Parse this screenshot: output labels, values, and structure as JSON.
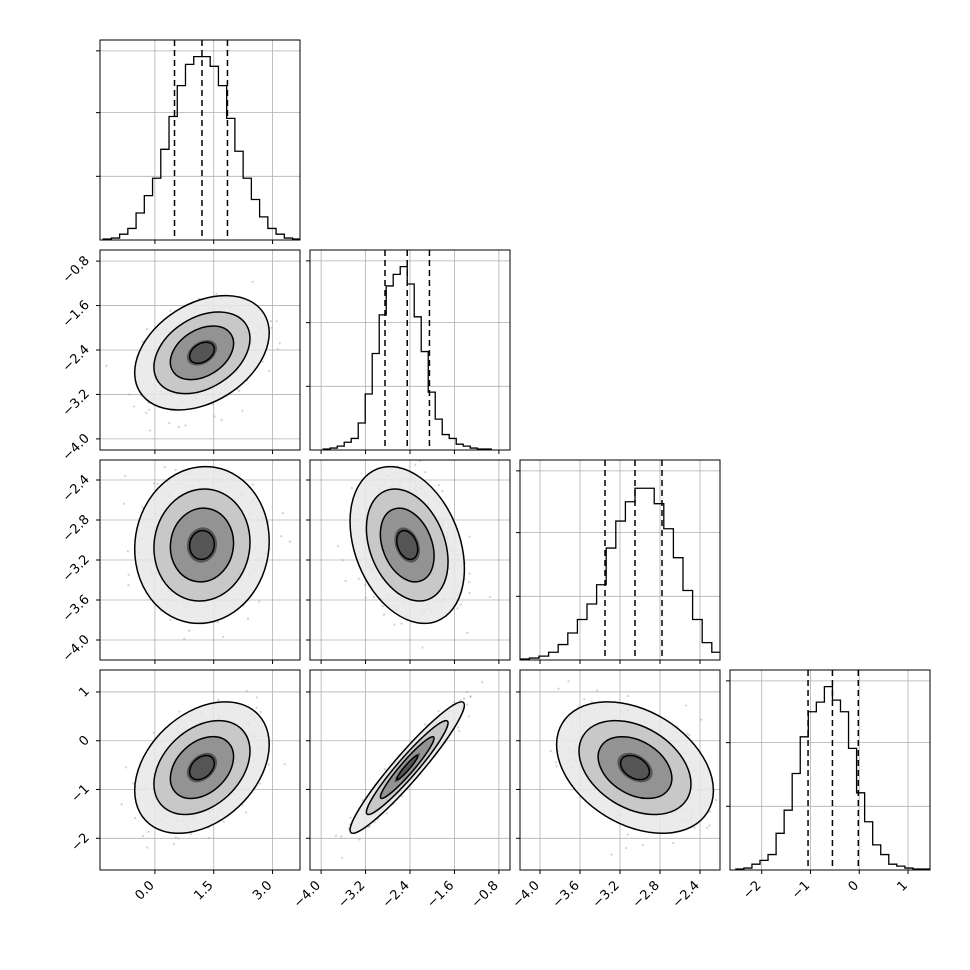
{
  "chart_data": {
    "type": "scatter",
    "subtype": "corner",
    "variables": 4,
    "grid": true,
    "ranges": [
      [
        -1.4,
        3.7
      ],
      [
        -4.2,
        -0.6
      ],
      [
        -4.2,
        -2.2
      ],
      [
        -2.65,
        1.45
      ]
    ],
    "ticks": [
      [
        0.0,
        1.5,
        3.0
      ],
      [
        -4.0,
        -3.2,
        -2.4,
        -1.6,
        -0.8
      ],
      [
        -4.0,
        -3.6,
        -3.2,
        -2.8,
        -2.4
      ],
      [
        -2,
        -1,
        0,
        1
      ]
    ],
    "tick_labels": [
      [
        "0.0",
        "1.5",
        "3.0"
      ],
      [
        "−4.0",
        "−3.2",
        "−2.4",
        "−1.6",
        "−0.8"
      ],
      [
        "−4.0",
        "−3.6",
        "−3.2",
        "−2.8",
        "−2.4"
      ],
      [
        "−2",
        "−1",
        "0",
        "1"
      ]
    ],
    "quantiles": [
      [
        0.5,
        1.2,
        1.85
      ],
      [
        -2.85,
        -2.45,
        -2.05
      ],
      [
        -3.35,
        -3.05,
        -2.78
      ],
      [
        -1.05,
        -0.55,
        -0.02
      ]
    ],
    "histograms": [
      [
        0.5,
        1,
        3,
        6,
        14,
        23,
        32,
        47,
        64,
        80,
        91,
        95,
        95,
        90,
        80,
        63,
        46,
        32,
        21,
        12,
        6,
        3,
        1,
        0.5
      ],
      [
        0.5,
        1,
        2,
        4,
        6,
        14,
        29,
        50,
        70,
        85,
        91,
        95,
        86,
        69,
        51,
        30,
        16,
        8,
        6,
        3,
        2,
        1,
        0.5,
        0.5
      ],
      [
        0.5,
        1,
        2,
        4,
        8,
        14,
        21,
        29,
        39,
        58,
        72,
        82,
        89,
        89,
        81,
        68,
        53,
        36,
        21,
        9,
        4,
        2,
        1,
        0.5
      ],
      [
        0.5,
        1,
        3,
        5,
        8,
        19,
        31,
        50,
        69,
        82,
        87,
        95,
        88,
        82,
        63,
        40,
        25,
        13,
        8,
        3,
        2,
        1,
        0.5,
        0.5
      ]
    ],
    "correlations": [
      [
        1,
        0.35,
        0.05,
        0.35
      ],
      [
        0.35,
        1,
        -0.3,
        0.95
      ],
      [
        0.05,
        -0.3,
        1,
        -0.35
      ],
      [
        0.35,
        0.95,
        -0.35,
        1
      ]
    ],
    "means": [
      1.2,
      -2.45,
      -3.05,
      -0.55
    ],
    "stds": [
      0.7,
      0.42,
      0.32,
      0.55
    ]
  }
}
